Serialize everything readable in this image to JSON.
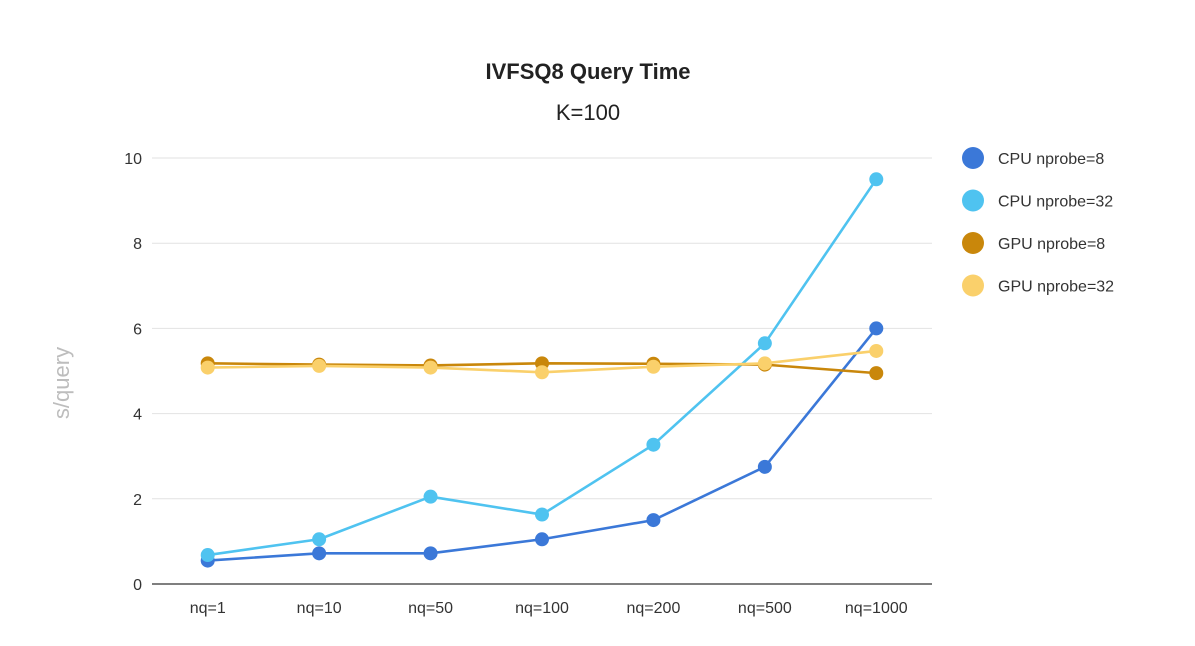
{
  "chart_data": {
    "type": "line",
    "title": "IVFSQ8 Query Time",
    "subtitle": "K=100",
    "xlabel": "",
    "ylabel": "s/query",
    "ylim": [
      0,
      10
    ],
    "yticks": [
      0,
      2,
      4,
      6,
      8,
      10
    ],
    "grid": true,
    "legend_position": "right",
    "categories": [
      "nq=1",
      "nq=10",
      "nq=50",
      "nq=100",
      "nq=200",
      "nq=500",
      "nq=1000"
    ],
    "series": [
      {
        "name": "CPU nprobe=8",
        "color": "#3b78d8",
        "values": [
          0.55,
          0.72,
          0.72,
          1.05,
          1.5,
          2.75,
          6.0
        ]
      },
      {
        "name": "CPU nprobe=32",
        "color": "#4fc3f0",
        "values": [
          0.68,
          1.05,
          2.05,
          1.63,
          3.27,
          5.65,
          9.5
        ]
      },
      {
        "name": "GPU nprobe=8",
        "color": "#c9870b",
        "values": [
          5.18,
          5.15,
          5.13,
          5.18,
          5.17,
          5.15,
          4.95
        ]
      },
      {
        "name": "GPU nprobe=32",
        "color": "#fad06b",
        "values": [
          5.08,
          5.12,
          5.08,
          4.97,
          5.1,
          5.18,
          5.47
        ]
      }
    ]
  }
}
